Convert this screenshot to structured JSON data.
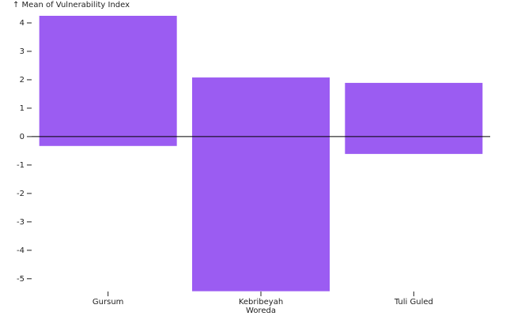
{
  "chart_data": {
    "type": "bar",
    "y_label": "↑ Mean of Vulnerability Index",
    "x_label": "Woreda",
    "categories": [
      "Gursum",
      "Kebribeyah",
      "Tuli Guled"
    ],
    "series": [
      {
        "color": "#9b5cf2",
        "values": [
          4.25,
          2.08,
          1.89
        ]
      },
      {
        "color": "#9b5cf2",
        "values": [
          -0.33,
          -5.44,
          -0.61
        ]
      }
    ],
    "ylim": [
      -5.45,
      4.25
    ],
    "yticks": [
      -5,
      -4,
      -3,
      -2,
      -1,
      0,
      1,
      2,
      3,
      4
    ]
  }
}
